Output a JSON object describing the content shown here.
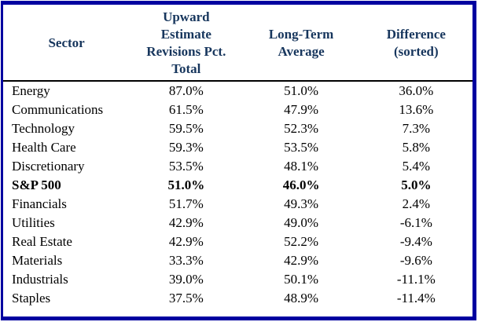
{
  "colors": {
    "border": "#0000A0",
    "header_text": "#17365D",
    "body_text": "#000000",
    "header_rule": "#000000"
  },
  "table": {
    "headers": [
      {
        "label": "Sector"
      },
      {
        "label": "Upward\nEstimate\nRevisions Pct.\nTotal"
      },
      {
        "label": "Long-Term\nAverage"
      },
      {
        "label": "Difference\n(sorted)"
      }
    ],
    "rows": [
      {
        "sector": "Energy",
        "upward": "87.0%",
        "long_term": "51.0%",
        "difference": "36.0%"
      },
      {
        "sector": "Communications",
        "upward": "61.5%",
        "long_term": "47.9%",
        "difference": "13.6%"
      },
      {
        "sector": "Technology",
        "upward": "59.5%",
        "long_term": "52.3%",
        "difference": "7.3%"
      },
      {
        "sector": "Health Care",
        "upward": "59.3%",
        "long_term": "53.5%",
        "difference": "5.8%"
      },
      {
        "sector": "Discretionary",
        "upward": "53.5%",
        "long_term": "48.1%",
        "difference": "5.4%"
      },
      {
        "sector": "S&P 500",
        "upward": "51.0%",
        "long_term": "46.0%",
        "difference": "5.0%"
      },
      {
        "sector": "Financials",
        "upward": "51.7%",
        "long_term": "49.3%",
        "difference": "2.4%"
      },
      {
        "sector": "Utilities",
        "upward": "42.9%",
        "long_term": "49.0%",
        "difference": "-6.1%"
      },
      {
        "sector": "Real Estate",
        "upward": "42.9%",
        "long_term": "52.2%",
        "difference": "-9.4%"
      },
      {
        "sector": "Materials",
        "upward": "33.3%",
        "long_term": "42.9%",
        "difference": "-9.6%"
      },
      {
        "sector": "Industrials",
        "upward": "39.0%",
        "long_term": "50.1%",
        "difference": "-11.1%"
      },
      {
        "sector": "Staples",
        "upward": "37.5%",
        "long_term": "48.9%",
        "difference": "-11.4%"
      }
    ]
  },
  "chart_data": {
    "type": "table",
    "title": "",
    "columns": [
      "Sector",
      "Upward Estimate Revisions Pct. Total",
      "Long-Term Average",
      "Difference (sorted)"
    ],
    "rows": [
      [
        "Energy",
        87.0,
        51.0,
        36.0
      ],
      [
        "Communications",
        61.5,
        47.9,
        13.6
      ],
      [
        "Technology",
        59.5,
        52.3,
        7.3
      ],
      [
        "Health Care",
        59.3,
        53.5,
        5.8
      ],
      [
        "Discretionary",
        53.5,
        48.1,
        5.4
      ],
      [
        "S&P 500",
        51.0,
        46.0,
        5.0
      ],
      [
        "Financials",
        51.7,
        49.3,
        2.4
      ],
      [
        "Utilities",
        42.9,
        49.0,
        -6.1
      ],
      [
        "Real Estate",
        42.9,
        52.2,
        -9.4
      ],
      [
        "Materials",
        33.3,
        42.9,
        -9.6
      ],
      [
        "Industrials",
        39.0,
        50.1,
        -11.1
      ],
      [
        "Staples",
        37.5,
        48.9,
        -11.4
      ]
    ],
    "units": "percent",
    "emphasized_row": "S&P 500",
    "sorted_by": "Difference (descending)"
  }
}
